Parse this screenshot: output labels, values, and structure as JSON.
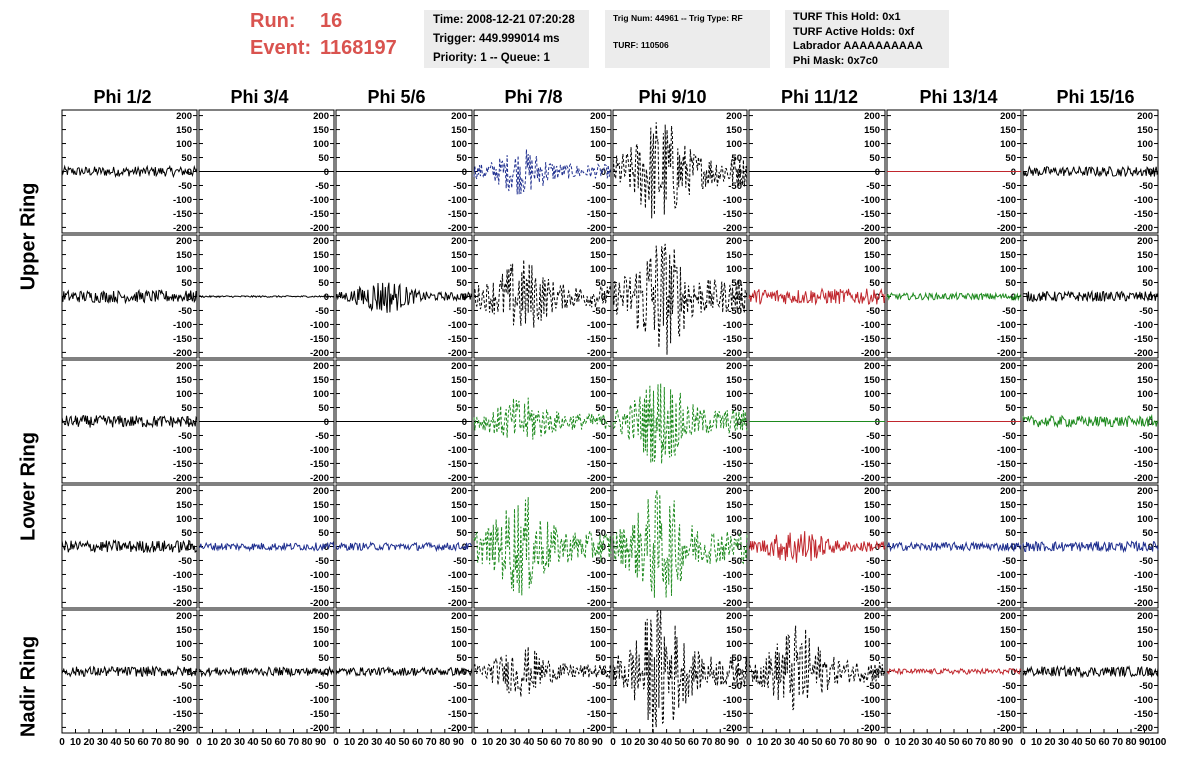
{
  "header": {
    "run_label": "Run:",
    "run_value": "16",
    "event_label": "Event:",
    "event_value": "1168197",
    "time_box": {
      "time": "Time: 2008-12-21 07:20:28",
      "trigger": "Trigger: 449.999014 ms",
      "priority": "Priority: 1 -- Queue: 1"
    },
    "trig_box": {
      "trig": "Trig Num: 44961 -- Trig Type: RF",
      "turf": "TURF: 110506"
    },
    "turf_box": {
      "hold": "TURF This Hold: 0x1",
      "active": "TURF Active Holds: 0xf",
      "labrador": "Labrador AAAAAAAAAA",
      "mask": "Phi Mask: 0x7c0"
    }
  },
  "columns": [
    "Phi 1/2",
    "Phi 3/4",
    "Phi 5/6",
    "Phi 7/8",
    "Phi 9/10",
    "Phi 11/12",
    "Phi 13/14",
    "Phi 15/16"
  ],
  "ring_labels": [
    "Upper Ring",
    "Lower Ring",
    "Nadir Ring"
  ],
  "colors": {
    "run_text": "#d9534f",
    "black": "#000000",
    "blue": "#1f2f8f",
    "green": "#1e8a1e",
    "red": "#c0272d"
  },
  "chart_data": {
    "type": "line",
    "x_ticks": [
      "0",
      "10",
      "20",
      "30",
      "40",
      "50",
      "60",
      "70",
      "80",
      "90",
      "100"
    ],
    "y_ticks": [
      "200",
      "150",
      "100",
      "50",
      "0",
      "-50",
      "-100",
      "-150",
      "-200"
    ],
    "xlim": [
      0,
      100
    ],
    "ylim": [
      -220,
      220
    ],
    "rows": [
      {
        "name": "Upper Ring 1",
        "cells": [
          {
            "color": "black",
            "dashed": false,
            "amp": 18,
            "burst": 0
          },
          {
            "color": "black",
            "dashed": false,
            "amp": 0,
            "burst": 0
          },
          {
            "color": "black",
            "dashed": false,
            "amp": 0,
            "burst": 0
          },
          {
            "color": "blue",
            "dashed": true,
            "amp": 25,
            "burst": 60
          },
          {
            "color": "black",
            "dashed": true,
            "amp": 55,
            "burst": 150
          },
          {
            "color": "black",
            "dashed": false,
            "amp": 0,
            "burst": 0
          },
          {
            "color": "red",
            "dashed": false,
            "amp": 0,
            "burst": 0
          },
          {
            "color": "black",
            "dashed": false,
            "amp": 18,
            "burst": 0
          }
        ]
      },
      {
        "name": "Upper Ring 2",
        "cells": [
          {
            "color": "black",
            "dashed": false,
            "amp": 22,
            "burst": 0
          },
          {
            "color": "black",
            "dashed": false,
            "amp": 3,
            "burst": 0
          },
          {
            "color": "black",
            "dashed": false,
            "amp": 15,
            "burst": 50
          },
          {
            "color": "black",
            "dashed": true,
            "amp": 40,
            "burst": 100
          },
          {
            "color": "black",
            "dashed": true,
            "amp": 60,
            "burst": 170
          },
          {
            "color": "red",
            "dashed": false,
            "amp": 28,
            "burst": 0
          },
          {
            "color": "green",
            "dashed": false,
            "amp": 12,
            "burst": 0
          },
          {
            "color": "black",
            "dashed": false,
            "amp": 18,
            "burst": 0
          }
        ]
      },
      {
        "name": "Lower Ring 1",
        "cells": [
          {
            "color": "black",
            "dashed": false,
            "amp": 22,
            "burst": 0
          },
          {
            "color": "black",
            "dashed": false,
            "amp": 0,
            "burst": 0
          },
          {
            "color": "black",
            "dashed": false,
            "amp": 0,
            "burst": 0
          },
          {
            "color": "green",
            "dashed": true,
            "amp": 30,
            "burst": 60
          },
          {
            "color": "green",
            "dashed": true,
            "amp": 45,
            "burst": 120
          },
          {
            "color": "green",
            "dashed": false,
            "amp": 0,
            "burst": 0
          },
          {
            "color": "red",
            "dashed": false,
            "amp": 0,
            "burst": 0
          },
          {
            "color": "green",
            "dashed": false,
            "amp": 20,
            "burst": 0
          }
        ]
      },
      {
        "name": "Lower Ring 2",
        "cells": [
          {
            "color": "black",
            "dashed": false,
            "amp": 22,
            "burst": 0
          },
          {
            "color": "blue",
            "dashed": false,
            "amp": 14,
            "burst": 0
          },
          {
            "color": "blue",
            "dashed": false,
            "amp": 14,
            "burst": 0
          },
          {
            "color": "green",
            "dashed": true,
            "amp": 55,
            "burst": 130
          },
          {
            "color": "green",
            "dashed": true,
            "amp": 60,
            "burst": 150
          },
          {
            "color": "red",
            "dashed": false,
            "amp": 20,
            "burst": 50
          },
          {
            "color": "blue",
            "dashed": false,
            "amp": 15,
            "burst": 0
          },
          {
            "color": "blue",
            "dashed": false,
            "amp": 18,
            "burst": 0
          }
        ]
      },
      {
        "name": "Nadir Ring",
        "cells": [
          {
            "color": "black",
            "dashed": false,
            "amp": 18,
            "burst": 0
          },
          {
            "color": "black",
            "dashed": false,
            "amp": 15,
            "burst": 0
          },
          {
            "color": "black",
            "dashed": false,
            "amp": 15,
            "burst": 0
          },
          {
            "color": "black",
            "dashed": true,
            "amp": 25,
            "burst": 70
          },
          {
            "color": "black",
            "dashed": true,
            "amp": 55,
            "burst": 190
          },
          {
            "color": "black",
            "dashed": true,
            "amp": 40,
            "burst": 130
          },
          {
            "color": "red",
            "dashed": false,
            "amp": 10,
            "burst": 0
          },
          {
            "color": "black",
            "dashed": false,
            "amp": 18,
            "burst": 0
          }
        ]
      }
    ]
  }
}
